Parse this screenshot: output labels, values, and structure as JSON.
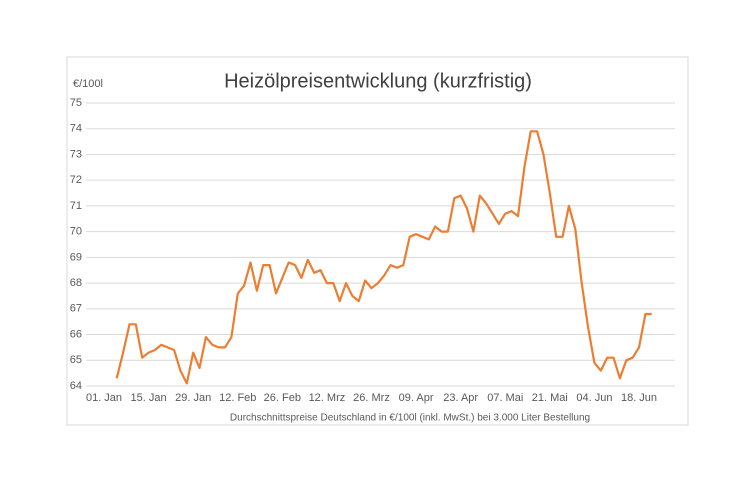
{
  "chart_data": {
    "type": "line",
    "title": "Heizölpreisentwicklung (kurzfristig)",
    "y_label": "€/100l",
    "x_label": "Durchschnittspreise Deutschland in €/100l (inkl. MwSt.) bei 3.000 Liter Bestellung",
    "categories": [
      "01. Jan",
      null,
      null,
      null,
      null,
      null,
      null,
      "15. Jan",
      null,
      null,
      null,
      null,
      null,
      null,
      "29. Jan",
      null,
      null,
      null,
      null,
      null,
      null,
      "12. Feb",
      null,
      null,
      null,
      null,
      null,
      null,
      "26. Feb",
      null,
      null,
      null,
      null,
      null,
      null,
      "12. Mrz",
      null,
      null,
      null,
      null,
      null,
      null,
      "26. Mrz",
      null,
      null,
      null,
      null,
      null,
      null,
      "09. Apr",
      null,
      null,
      null,
      null,
      null,
      null,
      "23. Apr",
      null,
      null,
      null,
      null,
      null,
      null,
      "07. Mai",
      null,
      null,
      null,
      null,
      null,
      null,
      "21. Mai",
      null,
      null,
      null,
      null,
      null,
      null,
      "04. Jun",
      null,
      null,
      null,
      null,
      null,
      null,
      "18. Jun",
      null,
      null
    ],
    "series": [
      {
        "color": "#ed7d31",
        "values": [
          null,
          null,
          64.3,
          65.3,
          66.4,
          66.4,
          65.1,
          65.3,
          65.4,
          65.6,
          65.5,
          65.4,
          64.6,
          64.1,
          65.3,
          64.7,
          65.9,
          65.6,
          65.5,
          65.5,
          65.9,
          67.6,
          67.9,
          68.8,
          67.7,
          68.7,
          68.7,
          67.6,
          68.2,
          68.8,
          68.7,
          68.2,
          68.9,
          68.4,
          68.5,
          68.0,
          68.0,
          67.3,
          68.0,
          67.5,
          67.3,
          68.1,
          67.8,
          68.0,
          68.3,
          68.7,
          68.6,
          68.7,
          69.8,
          69.9,
          69.8,
          69.7,
          70.2,
          70.0,
          70.0,
          71.3,
          71.4,
          70.9,
          70.0,
          71.4,
          71.1,
          70.7,
          70.3,
          70.7,
          70.8,
          70.6,
          72.5,
          73.9,
          73.9,
          73.0,
          71.5,
          69.8,
          69.8,
          71.0,
          70.1,
          68.0,
          66.3,
          64.9,
          64.6,
          65.1,
          65.1,
          64.3,
          65.0,
          65.1,
          65.5,
          66.8,
          66.8
        ]
      }
    ],
    "ylim": [
      64,
      75
    ],
    "yticks": [
      64,
      65,
      66,
      67,
      68,
      69,
      70,
      71,
      72,
      73,
      74,
      75
    ],
    "grid": true
  }
}
